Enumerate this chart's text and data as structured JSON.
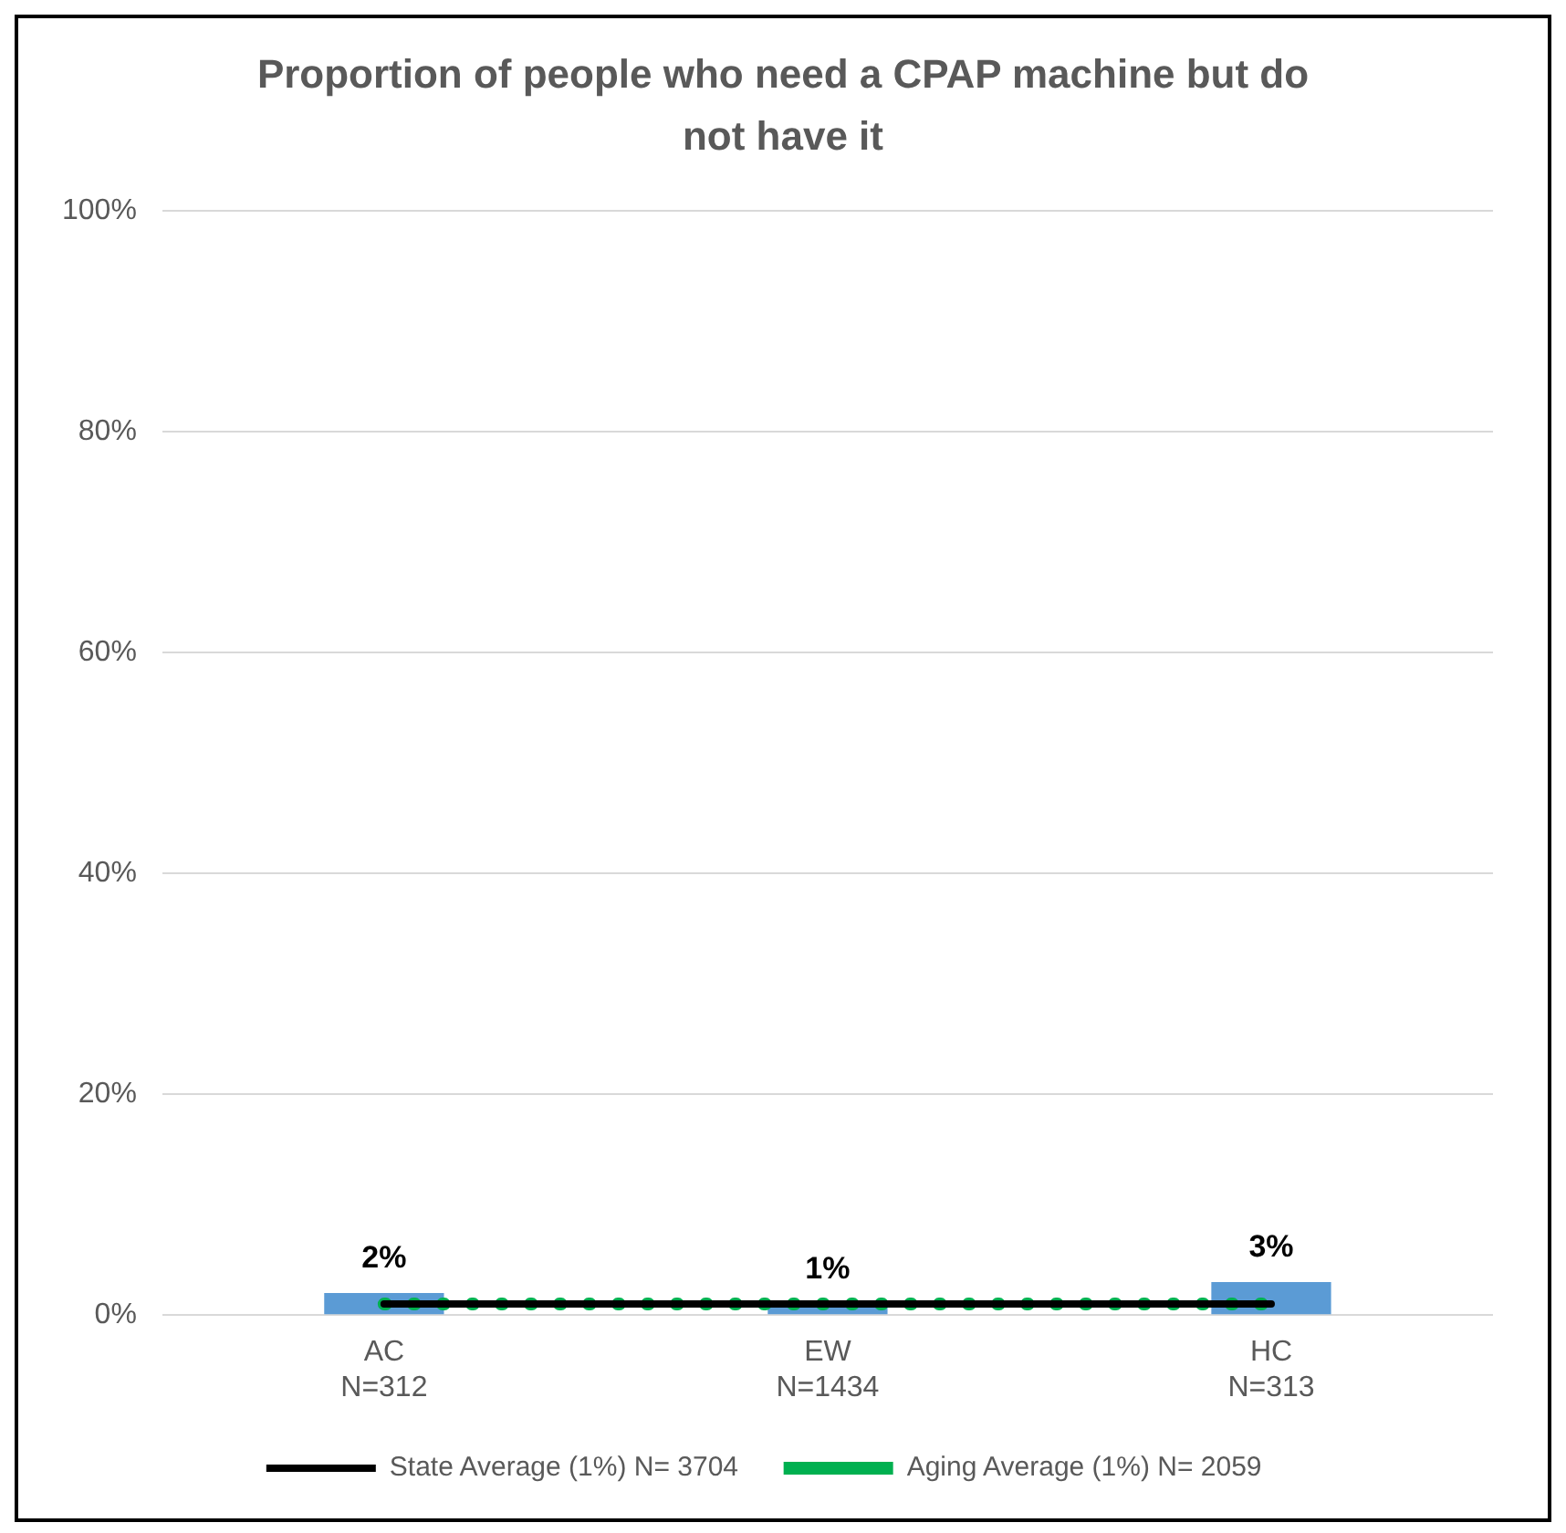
{
  "chart_data": {
    "type": "bar",
    "title": "Proportion of people who need a CPAP machine but do not have it",
    "categories": [
      "AC\nN=312",
      "EW\nN=1434",
      "HC\nN=313"
    ],
    "series": [
      {
        "color": "#5b9bd5",
        "values": [
          2,
          1,
          3
        ],
        "value_labels": [
          "2%",
          "1%",
          "3%"
        ]
      },
      {
        "type": "line",
        "name": "State Average (1%) N= 3704",
        "color": "#000000",
        "values": [
          1,
          1,
          1
        ],
        "line_style": "solid",
        "marker": "none"
      },
      {
        "type": "line",
        "name": "Aging Average (1%) N= 2059",
        "color": "#00b050",
        "values": [
          1,
          1,
          1
        ],
        "line_style": "dotted",
        "marker": "none"
      }
    ],
    "ylim": [
      0,
      100
    ],
    "yticks": [
      {
        "value": 0,
        "label": "0%"
      },
      {
        "value": 20,
        "label": "20%"
      },
      {
        "value": 40,
        "label": "40%"
      },
      {
        "value": 60,
        "label": "60%"
      },
      {
        "value": 80,
        "label": "80%"
      },
      {
        "value": 100,
        "label": "100%"
      }
    ],
    "grid": "y",
    "legend": "bottom"
  }
}
